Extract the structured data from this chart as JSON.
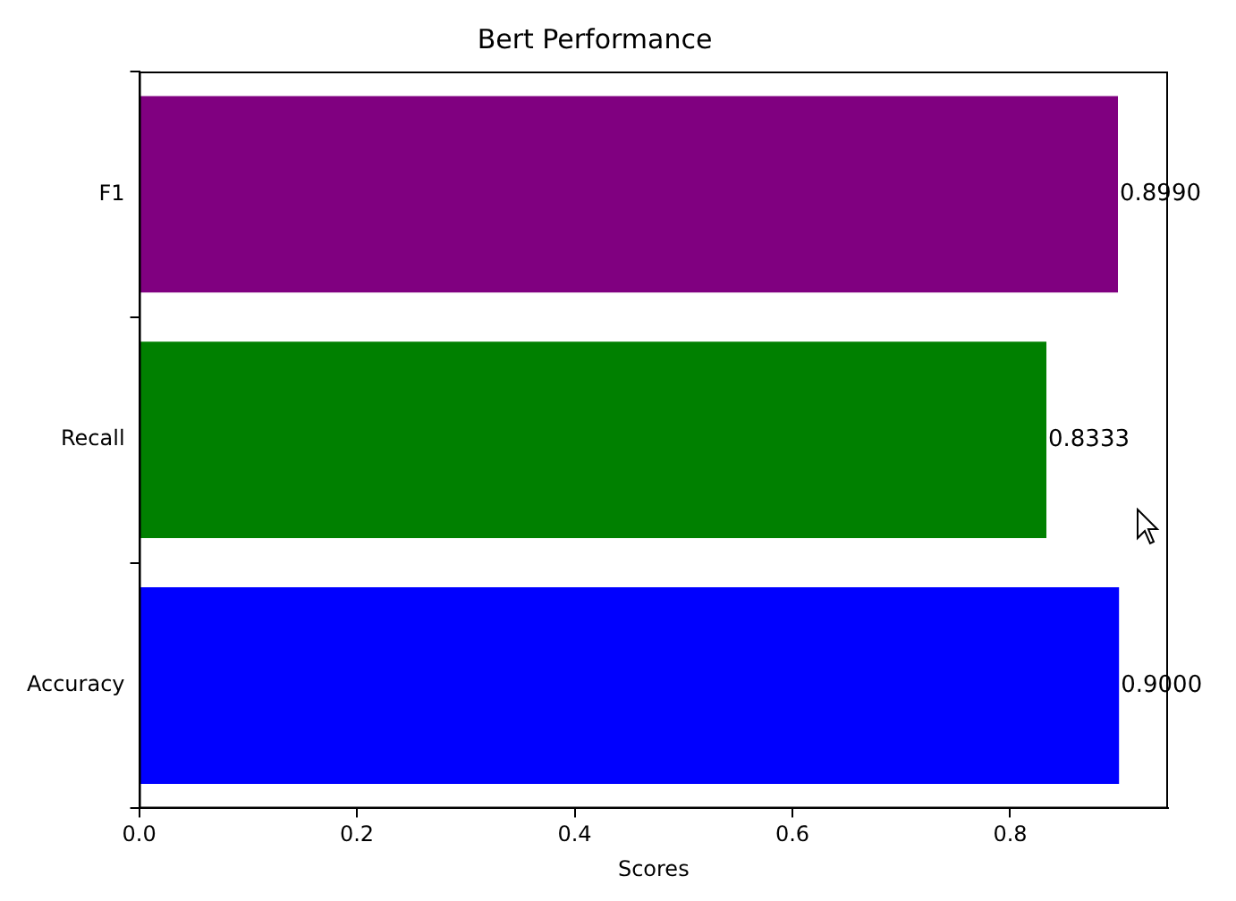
{
  "chart_data": {
    "type": "bar",
    "orientation": "horizontal",
    "title": "Bert Performance",
    "xlabel": "Scores",
    "categories": [
      "F1",
      "Recall",
      "Accuracy"
    ],
    "values": [
      0.899,
      0.8333,
      0.9
    ],
    "colors": [
      "#800080",
      "#008000",
      "#0000ff"
    ],
    "value_labels": [
      "0.8990",
      "0.8333",
      "0.9000"
    ],
    "xlim": [
      0,
      0.945
    ],
    "xticks": [
      {
        "value": 0,
        "label": "0.0"
      },
      0.2,
      0.4,
      0.6,
      0.8
    ],
    "grid": false,
    "legend": false
  }
}
